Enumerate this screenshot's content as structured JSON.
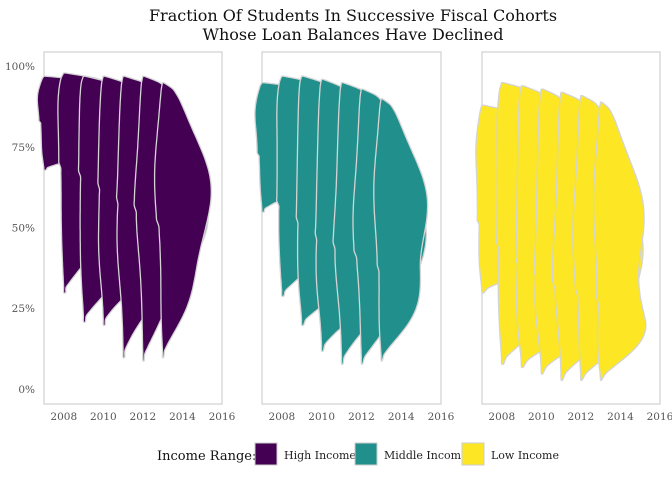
{
  "chart_data": {
    "type": "violin",
    "title": [
      "Fraction Of Students In Successive Fiscal Cohorts",
      "Whose Loan Balances Have Declined"
    ],
    "xlabel": "",
    "ylabel": "",
    "x_ticks": [
      "2008",
      "2010",
      "2012",
      "2014",
      "2016"
    ],
    "x_range": [
      2007,
      2016
    ],
    "y_ticks": [
      "0%",
      "25%",
      "50%",
      "75%",
      "100%"
    ],
    "y_range": [
      0,
      1
    ],
    "legend": {
      "title": "Income Range:",
      "placement": "bottom",
      "entries": [
        {
          "label": "High Income",
          "color": "#440154"
        },
        {
          "label": "Middle Income",
          "color": "#21908C"
        },
        {
          "label": "Low Income",
          "color": "#FDE725"
        }
      ]
    },
    "panels": [
      {
        "name": "High Income",
        "color": "#440154",
        "cohorts": [
          {
            "cohort_start": 2007,
            "cohort_end": 2015,
            "min": 0.68,
            "max": 0.97,
            "median": 0.83,
            "peak_at": 0.8
          },
          {
            "cohort_start": 2008,
            "cohort_end": 2015,
            "min": 0.3,
            "max": 0.98,
            "median": 0.7,
            "peak_at": 0.72
          },
          {
            "cohort_start": 2009,
            "cohort_end": 2015,
            "min": 0.21,
            "max": 0.97,
            "median": 0.66,
            "peak_at": 0.65
          },
          {
            "cohort_start": 2010,
            "cohort_end": 2015,
            "min": 0.2,
            "max": 0.97,
            "median": 0.62,
            "peak_at": 0.62
          },
          {
            "cohort_start": 2011,
            "cohort_end": 2015,
            "min": 0.1,
            "max": 0.97,
            "median": 0.58,
            "peak_at": 0.58
          },
          {
            "cohort_start": 2012,
            "cohort_end": 2015,
            "min": 0.09,
            "max": 0.97,
            "median": 0.55,
            "peak_at": 0.55
          },
          {
            "cohort_start": 2013,
            "cohort_end": 2015,
            "min": 0.1,
            "max": 0.95,
            "median": 0.52,
            "peak_at": 0.5
          }
        ]
      },
      {
        "name": "Middle Income",
        "color": "#21908C",
        "cohorts": [
          {
            "cohort_start": 2007,
            "cohort_end": 2015,
            "min": 0.55,
            "max": 0.95,
            "median": 0.73,
            "peak_at": 0.75
          },
          {
            "cohort_start": 2008,
            "cohort_end": 2015,
            "min": 0.29,
            "max": 0.97,
            "median": 0.58,
            "peak_at": 0.6
          },
          {
            "cohort_start": 2009,
            "cohort_end": 2015,
            "min": 0.2,
            "max": 0.97,
            "median": 0.53,
            "peak_at": 0.52
          },
          {
            "cohort_start": 2010,
            "cohort_end": 2015,
            "min": 0.12,
            "max": 0.96,
            "median": 0.48,
            "peak_at": 0.48
          },
          {
            "cohort_start": 2011,
            "cohort_end": 2015,
            "min": 0.08,
            "max": 0.95,
            "median": 0.45,
            "peak_at": 0.45
          },
          {
            "cohort_start": 2012,
            "cohort_end": 2015,
            "min": 0.08,
            "max": 0.93,
            "median": 0.42,
            "peak_at": 0.4
          },
          {
            "cohort_start": 2013,
            "cohort_end": 2015,
            "min": 0.09,
            "max": 0.9,
            "median": 0.38,
            "peak_at": 0.37
          }
        ]
      },
      {
        "name": "Low Income",
        "color": "#FDE725",
        "cohorts": [
          {
            "cohort_start": 2007,
            "cohort_end": 2015,
            "min": 0.3,
            "max": 0.88,
            "median": 0.52,
            "peak_at": 0.47
          },
          {
            "cohort_start": 2008,
            "cohort_end": 2015,
            "min": 0.08,
            "max": 0.95,
            "median": 0.45,
            "peak_at": 0.4
          },
          {
            "cohort_start": 2009,
            "cohort_end": 2015,
            "min": 0.07,
            "max": 0.94,
            "median": 0.4,
            "peak_at": 0.35
          },
          {
            "cohort_start": 2010,
            "cohort_end": 2015,
            "min": 0.05,
            "max": 0.93,
            "median": 0.37,
            "peak_at": 0.32
          },
          {
            "cohort_start": 2011,
            "cohort_end": 2015,
            "min": 0.03,
            "max": 0.92,
            "median": 0.33,
            "peak_at": 0.28
          },
          {
            "cohort_start": 2012,
            "cohort_end": 2015,
            "min": 0.03,
            "max": 0.91,
            "median": 0.3,
            "peak_at": 0.25
          },
          {
            "cohort_start": 2013,
            "cohort_end": 2015,
            "min": 0.03,
            "max": 0.89,
            "median": 0.27,
            "peak_at": 0.22
          }
        ]
      }
    ]
  }
}
